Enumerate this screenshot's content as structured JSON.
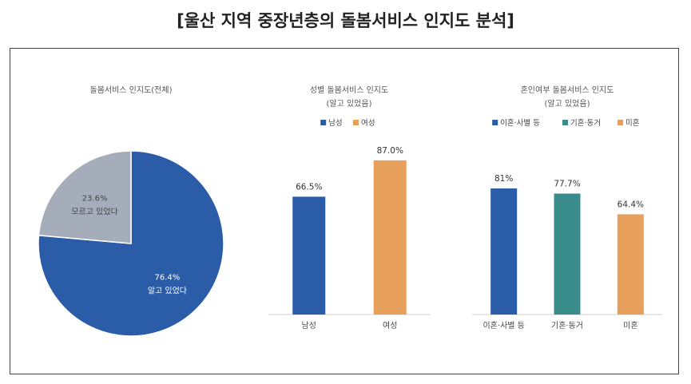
{
  "page_title": "[울산 지역 중장년층의 돌봄서비스 인지도 분석]",
  "chart_data": [
    {
      "type": "pie",
      "title": "돌봄서비스 인지도(전체)",
      "slices": [
        {
          "label": "알고 있었다",
          "value": 76.4,
          "value_label": "76.4%",
          "color": "#2A5CA8",
          "label_color": "#ffffff"
        },
        {
          "label": "모르고 있었다",
          "value": 23.6,
          "value_label": "23.6%",
          "color": "#A6ADBA",
          "label_color": "#444444"
        }
      ]
    },
    {
      "type": "bar",
      "title": "성별 돌봄서비스 인지도",
      "subtitle": "(알고 있었음)",
      "ylim": [
        0,
        100
      ],
      "categories": [
        "남성",
        "여성"
      ],
      "values": [
        66.5,
        87.0
      ],
      "value_labels": [
        "66.5%",
        "87.0%"
      ],
      "colors": [
        "#2A5CA8",
        "#E6A05C"
      ],
      "legend": [
        {
          "label": "남성",
          "color": "#2A5CA8"
        },
        {
          "label": "여성",
          "color": "#E6A05C"
        }
      ]
    },
    {
      "type": "bar",
      "title": "혼인여부 돌봄서비스 인지도",
      "subtitle": "(알고 있었음)",
      "ylim": [
        0,
        100
      ],
      "categories": [
        "이혼·사별 등",
        "기혼·동거",
        "미혼"
      ],
      "values": [
        81,
        77.7,
        64.4
      ],
      "value_labels": [
        "81%",
        "77.7%",
        "64.4%"
      ],
      "colors": [
        "#2A5CA8",
        "#3A8C8A",
        "#E6A05C"
      ],
      "legend": [
        {
          "label": "이혼·사별 등",
          "color": "#2A5CA8"
        },
        {
          "label": "기혼·동거",
          "color": "#3A8C8A"
        },
        {
          "label": "미혼",
          "color": "#E6A05C"
        }
      ]
    }
  ]
}
